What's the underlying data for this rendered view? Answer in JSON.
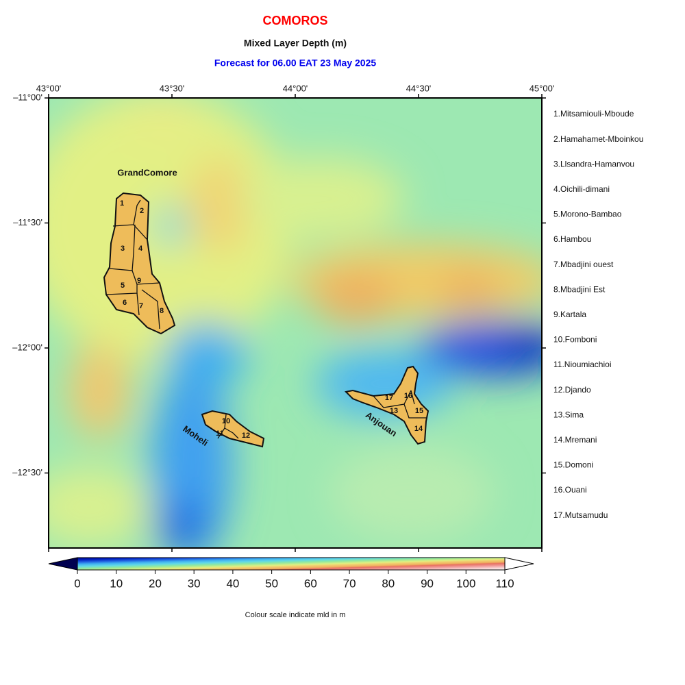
{
  "title": "COMOROS",
  "subtitle": "Mixed Layer Depth (m)",
  "forecast": "Forecast for  06.00 EAT 23 May 2025",
  "xlim": [
    43,
    45
  ],
  "ylim": [
    -12.8,
    -11
  ],
  "lon_ticks": [
    {
      "value": 43,
      "label": "43°00'"
    },
    {
      "value": 43.5,
      "label": "43°30'"
    },
    {
      "value": 44,
      "label": "44°00'"
    },
    {
      "value": 44.5,
      "label": "44°30'"
    },
    {
      "value": 45,
      "label": "45°00'"
    }
  ],
  "lat_ticks": [
    {
      "value": -11,
      "label": "–11°00'"
    },
    {
      "value": -11.5,
      "label": "–11°30'"
    },
    {
      "value": -12,
      "label": "–12°00'"
    },
    {
      "value": -12.5,
      "label": "–12°30'"
    }
  ],
  "islands": [
    {
      "name": "GrandComore"
    },
    {
      "name": "Moheli"
    },
    {
      "name": "Anjouan"
    }
  ],
  "regions": [
    {
      "number": "1",
      "name": "1.Mitsamiouli-Mboude"
    },
    {
      "number": "2",
      "name": "2.Hamahamet-Mboinkou"
    },
    {
      "number": "3",
      "name": "3.Llsandra-Hamanvou"
    },
    {
      "number": "4",
      "name": "4.Oichili-dimani"
    },
    {
      "number": "5",
      "name": "5.Morono-Bambao"
    },
    {
      "number": "6",
      "name": "6.Hambou"
    },
    {
      "number": "7",
      "name": "7.Mbadjini ouest"
    },
    {
      "number": "8",
      "name": "8.Mbadjini Est"
    },
    {
      "number": "9",
      "name": "9.Kartala"
    },
    {
      "number": "10",
      "name": "10.Fomboni"
    },
    {
      "number": "11",
      "name": "11.Nioumiachioi"
    },
    {
      "number": "12",
      "name": "12.Djando"
    },
    {
      "number": "13",
      "name": "13.Sima"
    },
    {
      "number": "14",
      "name": "14.Mremani"
    },
    {
      "number": "15",
      "name": "15.Domoni"
    },
    {
      "number": "16",
      "name": "16.Ouani"
    },
    {
      "number": "17",
      "name": "17.Mutsamudu"
    }
  ],
  "colorbar": {
    "range": [
      0,
      110
    ],
    "ticks": [
      0,
      10,
      20,
      30,
      40,
      50,
      60,
      70,
      80,
      90,
      100,
      110
    ],
    "caption": "Colour scale indicate mld in m"
  }
}
